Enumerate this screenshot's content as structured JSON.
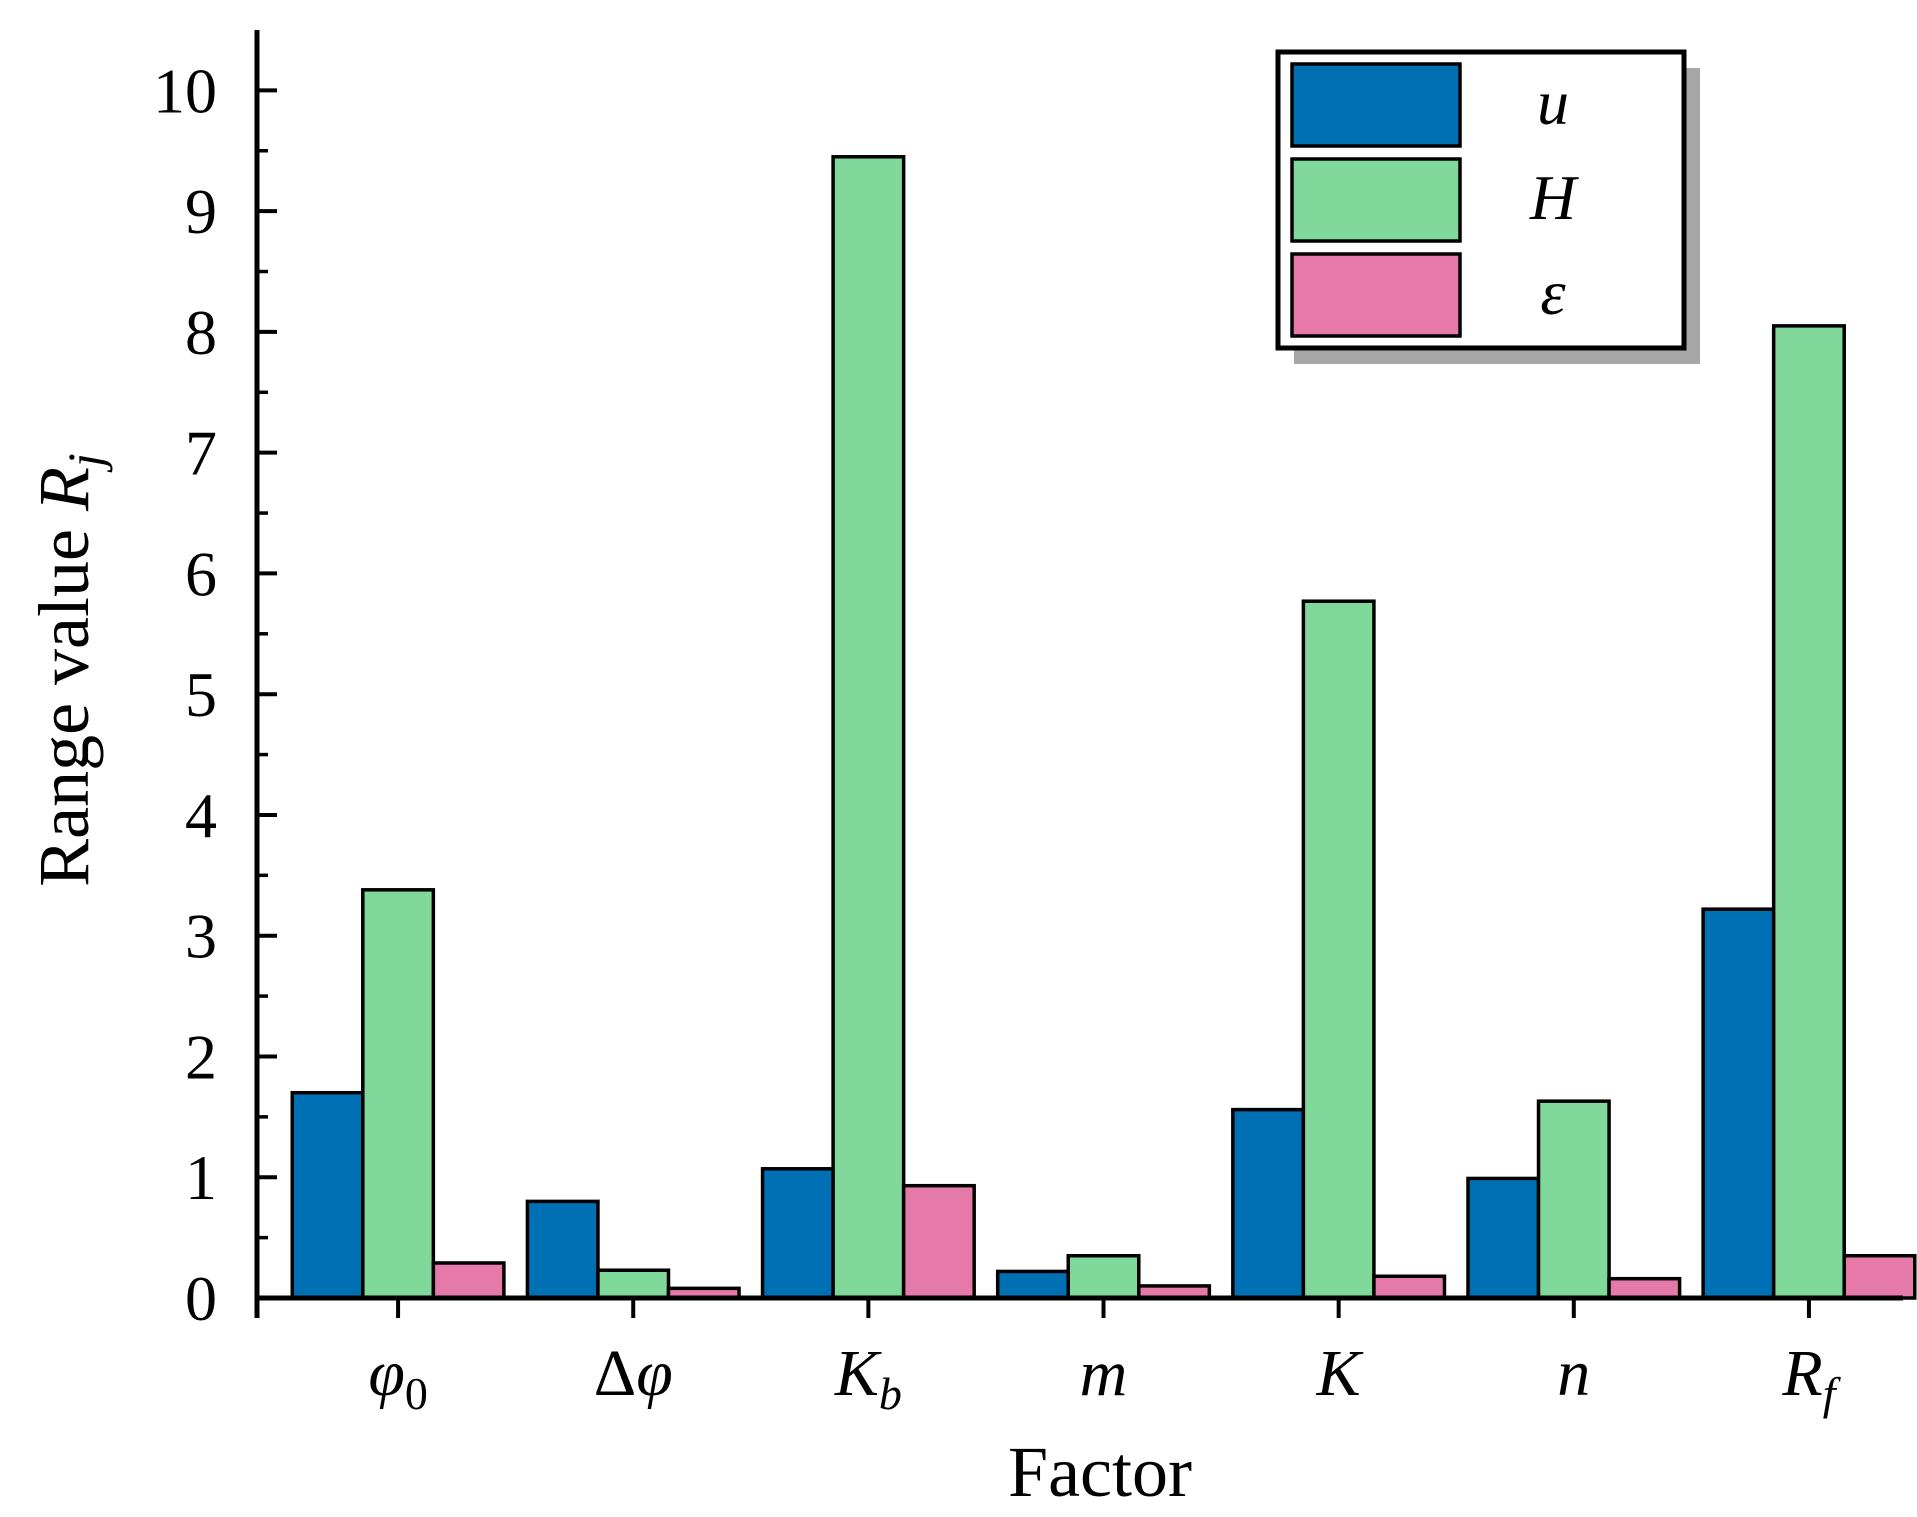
{
  "chart_data": {
    "type": "bar",
    "title": "",
    "xlabel": "Factor",
    "ylabel": "Range value",
    "ylabel_symbol": {
      "base": "R",
      "sub": "j"
    },
    "ylim": [
      0,
      10.5
    ],
    "yticks": [
      0,
      1,
      2,
      3,
      4,
      5,
      6,
      7,
      8,
      9,
      10
    ],
    "ytick_labels": [
      "0",
      "1",
      "2",
      "3",
      "4",
      "5",
      "6",
      "7",
      "8",
      "9",
      "10"
    ],
    "xlim": [
      -0.6,
      6.4
    ],
    "categories": [
      {
        "base": "φ",
        "sub": "0",
        "italic": true,
        "sub_italic": false
      },
      {
        "base": "Δ",
        "base2": "φ",
        "sub": "",
        "italic": false
      },
      {
        "base": "K",
        "sub": "b",
        "italic": true,
        "sub_italic": true
      },
      {
        "base": "m",
        "sub": "",
        "italic": true
      },
      {
        "base": "K",
        "sub": "",
        "italic": true
      },
      {
        "base": "n",
        "sub": "",
        "italic": true
      },
      {
        "base": "R",
        "sub": "f",
        "italic": true,
        "sub_italic": true
      }
    ],
    "series": [
      {
        "name": "u",
        "color": "#0070b5",
        "values": [
          1.7,
          0.8,
          1.07,
          0.22,
          1.56,
          0.99,
          3.22
        ]
      },
      {
        "name": "H",
        "color": "#80d99a",
        "values": [
          3.38,
          0.23,
          9.45,
          0.35,
          5.77,
          1.63,
          8.05
        ]
      },
      {
        "name": "ε",
        "color": "#e57aa8",
        "values": [
          0.29,
          0.08,
          0.93,
          0.1,
          0.18,
          0.16,
          0.35
        ]
      }
    ],
    "legend_position": "top-right",
    "grid": false
  }
}
